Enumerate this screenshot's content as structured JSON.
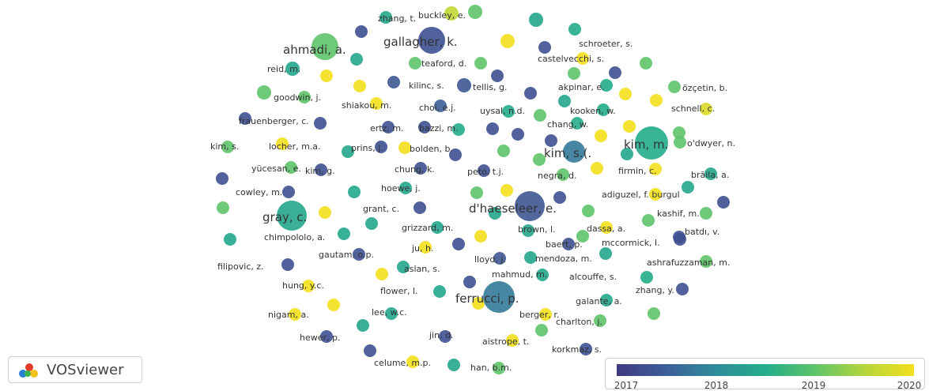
{
  "app": {
    "name": "VOSviewer"
  },
  "colors": {
    "gradient": [
      "#3f3a82",
      "#3c5f99",
      "#2e8c9a",
      "#23ad8a",
      "#5ec46a",
      "#b5d53b",
      "#f3e01d"
    ]
  },
  "legend": {
    "ticks": [
      "2017",
      "2018",
      "2019",
      "2020"
    ]
  },
  "nodes": [
    {
      "label": "zhang, t.",
      "year": 2018.4
    },
    {
      "label": "buckley, e.",
      "year": 2019.6
    },
    {
      "label": "ahmadi, a.",
      "year": 2019.0
    },
    {
      "label": "gallagher, k.",
      "year": 2017.3
    },
    {
      "label": "schroeter, s.",
      "year": 2018.5
    },
    {
      "label": "teaford, d.",
      "year": 2019.0
    },
    {
      "label": "castelvecchi, s.",
      "year": 2020.0
    },
    {
      "label": "reid, m.",
      "year": 2018.4
    },
    {
      "label": "kilinc, s.",
      "year": 2017.4
    },
    {
      "label": "tellis, g.",
      "year": 2017.4
    },
    {
      "label": "akpinar, e.",
      "year": 2018.5
    },
    {
      "label": "özçetin, b.",
      "year": 2019.0
    },
    {
      "label": "goodwin, j.",
      "year": 2019.0
    },
    {
      "label": "shiakou, m.",
      "year": 2020.0
    },
    {
      "label": "choi, e.j.",
      "year": 2017.5
    },
    {
      "label": "uysal, n.d.",
      "year": 2018.5
    },
    {
      "label": "kooken, w.",
      "year": 2018.5
    },
    {
      "label": "schnell, c.",
      "year": 2019.8
    },
    {
      "label": "frauenberger, c.",
      "year": 2017.3
    },
    {
      "label": "ertz, m.",
      "year": 2017.3
    },
    {
      "label": "bazzi, m.",
      "year": 2017.3
    },
    {
      "label": "chang, w.",
      "year": 2018.5
    },
    {
      "label": "kim, s.",
      "year": 2019.0
    },
    {
      "label": "locher, m.a.",
      "year": 2020.0
    },
    {
      "label": "prins, j.",
      "year": 2017.3
    },
    {
      "label": "bolden, b.",
      "year": 2020.0
    },
    {
      "label": "kim, s.(.",
      "year": 2017.8
    },
    {
      "label": "kim, m.",
      "year": 2018.5
    },
    {
      "label": "o'dwyer, n.",
      "year": 2019.0
    },
    {
      "label": "yücesan, e.",
      "year": 2019.0
    },
    {
      "label": "kim, g.",
      "year": 2017.3
    },
    {
      "label": "chung, k.",
      "year": 2017.3
    },
    {
      "label": "peto, t.j.",
      "year": 2017.3
    },
    {
      "label": "negra, d.",
      "year": 2019.0
    },
    {
      "label": "firmin, c.",
      "year": 2020.0
    },
    {
      "label": "brăila, a.",
      "year": 2018.4
    },
    {
      "label": "cowley, m.",
      "year": 2017.3
    },
    {
      "label": "hoewe, j.",
      "year": 2018.4
    },
    {
      "label": "adiguzel, f. burgul",
      "year": 2020.0
    },
    {
      "label": "gray, c.",
      "year": 2018.4
    },
    {
      "label": "grant, c.",
      "year": 2017.3
    },
    {
      "label": "d'haeseleer, e.",
      "year": 2017.4
    },
    {
      "label": "kashif, m.",
      "year": 2019.0
    },
    {
      "label": "chimpololo, a.",
      "year": 2018.4
    },
    {
      "label": "grizzard, m.",
      "year": 2018.4
    },
    {
      "label": "brown, l.",
      "year": 2018.4
    },
    {
      "label": "dassa, a.",
      "year": 2020.0
    },
    {
      "label": "batdı, v.",
      "year": 2017.3
    },
    {
      "label": "baert, p.",
      "year": 2017.3
    },
    {
      "label": "mccormick, l.",
      "year": 2017.3
    },
    {
      "label": "filipovic, z.",
      "year": 2017.3
    },
    {
      "label": "gautam, o.p.",
      "year": 2017.3
    },
    {
      "label": "ju, h.",
      "year": 2020.0
    },
    {
      "label": "lloyd, j.",
      "year": 2017.4
    },
    {
      "label": "mendoza, m.",
      "year": 2018.4
    },
    {
      "label": "ashrafuzzaman, m.",
      "year": 2019.0
    },
    {
      "label": "aslan, s.",
      "year": 2018.4
    },
    {
      "label": "mahmud, m.",
      "year": 2018.4
    },
    {
      "label": "alcouffe, s.",
      "year": 2018.5
    },
    {
      "label": "hung, y.c.",
      "year": 2020.0
    },
    {
      "label": "flower, l.",
      "year": 2018.4
    },
    {
      "label": "zhang, y.",
      "year": 2017.3
    },
    {
      "label": "ferrucci, p.",
      "year": 2017.8
    },
    {
      "label": "galante, a.",
      "year": 2018.4
    },
    {
      "label": "nigam, a.",
      "year": 2020.0
    },
    {
      "label": "lee, w.c.",
      "year": 2018.4
    },
    {
      "label": "berger, r.",
      "year": 2020.0
    },
    {
      "label": "charlton, j.",
      "year": 2019.0
    },
    {
      "label": "hewer, p.",
      "year": 2017.3
    },
    {
      "label": "jin, d.",
      "year": 2017.3
    },
    {
      "label": "aistrope, t.",
      "year": 2020.0
    },
    {
      "label": "korkmaz, s.",
      "year": 2017.3
    },
    {
      "label": "celume, m.p.",
      "year": 2020.0
    },
    {
      "label": "han, b.m.",
      "year": 2019.0
    }
  ],
  "extra_nodes": [
    {
      "year": 2019.0
    },
    {
      "year": 2018.4
    },
    {
      "year": 2017.3
    },
    {
      "year": 2020.0
    },
    {
      "year": 2017.3
    },
    {
      "year": 2018.4
    },
    {
      "year": 2019.0
    },
    {
      "year": 2019.0
    },
    {
      "year": 2020.0
    },
    {
      "year": 2017.3
    },
    {
      "year": 2019.0
    },
    {
      "year": 2017.3
    },
    {
      "year": 2020.0
    },
    {
      "year": 2017.3
    },
    {
      "year": 2020.0
    },
    {
      "year": 2018.4
    },
    {
      "year": 2019.0
    },
    {
      "year": 2020.0
    },
    {
      "year": 2017.3
    },
    {
      "year": 2017.3
    },
    {
      "year": 2019.0
    },
    {
      "year": 2018.5
    },
    {
      "year": 2020.0
    },
    {
      "year": 2019.0
    },
    {
      "year": 2017.3
    },
    {
      "year": 2018.4
    },
    {
      "year": 2017.3
    },
    {
      "year": 2019.0
    },
    {
      "year": 2020.0
    },
    {
      "year": 2017.3
    },
    {
      "year": 2018.4
    },
    {
      "year": 2019.0
    },
    {
      "year": 2020.0
    },
    {
      "year": 2017.3
    },
    {
      "year": 2018.4
    },
    {
      "year": 2019.0
    },
    {
      "year": 2020.0
    },
    {
      "year": 2017.3
    },
    {
      "year": 2018.4
    },
    {
      "year": 2019.0
    },
    {
      "year": 2020.0
    },
    {
      "year": 2018.4
    },
    {
      "year": 2019.0
    },
    {
      "year": 2017.3
    },
    {
      "year": 2018.4
    },
    {
      "year": 2020.0
    },
    {
      "year": 2019.0
    },
    {
      "year": 2018.4
    },
    {
      "year": 2017.3
    },
    {
      "year": 2019.0
    },
    {
      "year": 2020.0
    },
    {
      "year": 2018.4
    },
    {
      "year": 2017.3
    },
    {
      "year": 2019.0
    },
    {
      "year": 2020.0
    },
    {
      "year": 2018.4
    },
    {
      "year": 2017.3
    },
    {
      "year": 2019.0
    },
    {
      "year": 2020.0
    },
    {
      "year": 2018.4
    }
  ]
}
